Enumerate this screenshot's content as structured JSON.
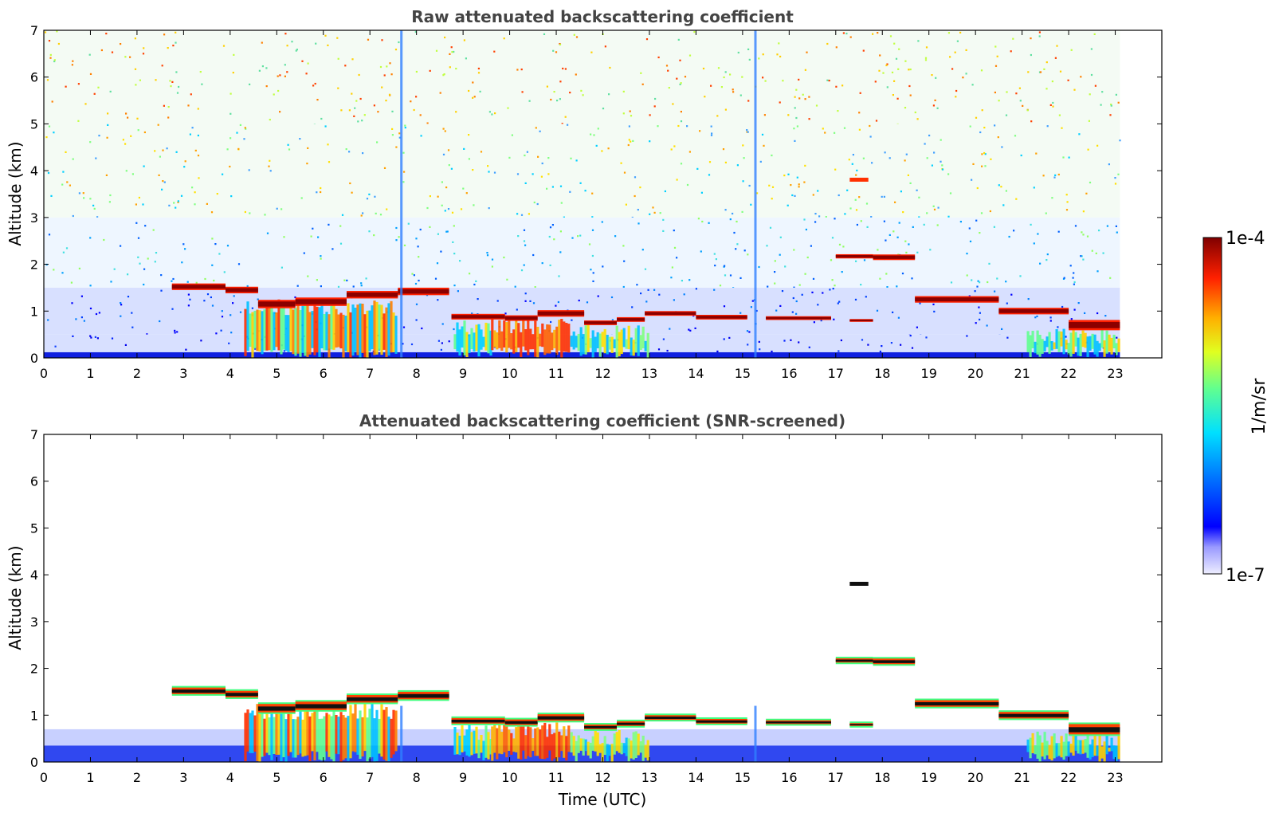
{
  "chart_data": [
    {
      "type": "heatmap",
      "title": "Raw attenuated backscattering coefficient",
      "xlabel": "",
      "ylabel": "Altitude (km)",
      "xlim": [
        0,
        24
      ],
      "ylim": [
        0,
        7
      ],
      "xticks": [
        "0",
        "1",
        "2",
        "3",
        "4",
        "5",
        "6",
        "7",
        "8",
        "9",
        "10",
        "11",
        "12",
        "13",
        "14",
        "15",
        "16",
        "17",
        "18",
        "19",
        "20",
        "21",
        "22",
        "23"
      ],
      "yticks": [
        "0",
        "1",
        "2",
        "3",
        "4",
        "5",
        "6",
        "7"
      ],
      "data_end_time": 23.1,
      "noise_background": true,
      "cloud_layers": [
        {
          "t0": 2.75,
          "t1": 3.9,
          "alt": 1.52,
          "thick": 0.14
        },
        {
          "t0": 3.9,
          "t1": 4.6,
          "alt": 1.45,
          "thick": 0.14
        },
        {
          "t0": 4.6,
          "t1": 5.4,
          "alt": 1.15,
          "thick": 0.18
        },
        {
          "t0": 5.4,
          "t1": 6.5,
          "alt": 1.2,
          "thick": 0.18
        },
        {
          "t0": 6.5,
          "t1": 7.6,
          "alt": 1.35,
          "thick": 0.16
        },
        {
          "t0": 7.6,
          "t1": 8.7,
          "alt": 1.42,
          "thick": 0.16
        },
        {
          "t0": 8.75,
          "t1": 9.9,
          "alt": 0.88,
          "thick": 0.12
        },
        {
          "t0": 9.9,
          "t1": 10.6,
          "alt": 0.85,
          "thick": 0.12
        },
        {
          "t0": 10.6,
          "t1": 11.6,
          "alt": 0.95,
          "thick": 0.14
        },
        {
          "t0": 11.6,
          "t1": 12.3,
          "alt": 0.75,
          "thick": 0.1
        },
        {
          "t0": 12.3,
          "t1": 12.9,
          "alt": 0.82,
          "thick": 0.1
        },
        {
          "t0": 12.9,
          "t1": 14.0,
          "alt": 0.95,
          "thick": 0.1
        },
        {
          "t0": 14.0,
          "t1": 15.1,
          "alt": 0.87,
          "thick": 0.1
        },
        {
          "t0": 15.5,
          "t1": 16.9,
          "alt": 0.85,
          "thick": 0.08
        },
        {
          "t0": 17.3,
          "t1": 17.8,
          "alt": 0.8,
          "thick": 0.06
        },
        {
          "t0": 17.0,
          "t1": 17.8,
          "alt": 2.17,
          "thick": 0.09
        },
        {
          "t0": 17.8,
          "t1": 18.7,
          "alt": 2.15,
          "thick": 0.12
        },
        {
          "t0": 18.7,
          "t1": 20.5,
          "alt": 1.25,
          "thick": 0.14
        },
        {
          "t0": 20.5,
          "t1": 22.0,
          "alt": 1.0,
          "thick": 0.14
        },
        {
          "t0": 22.0,
          "t1": 23.1,
          "alt": 0.7,
          "thick": 0.22
        }
      ]
    },
    {
      "type": "heatmap",
      "title": "Attenuated backscattering coefficient (SNR-screened)",
      "xlabel": "Time (UTC)",
      "ylabel": "Altitude (km)",
      "xlim": [
        0,
        24
      ],
      "ylim": [
        0,
        7
      ],
      "xticks": [
        "0",
        "1",
        "2",
        "3",
        "4",
        "5",
        "6",
        "7",
        "8",
        "9",
        "10",
        "11",
        "12",
        "13",
        "14",
        "15",
        "16",
        "17",
        "18",
        "19",
        "20",
        "21",
        "22",
        "23"
      ],
      "yticks": [
        "0",
        "1",
        "2",
        "3",
        "4",
        "5",
        "6",
        "7"
      ],
      "data_end_time": 23.1,
      "noise_background": false
    }
  ],
  "colorbar": {
    "label": "1/m/sr",
    "max_label": "1e-4",
    "min_label": "1e-7",
    "scale": "log",
    "colormap": "jet"
  }
}
